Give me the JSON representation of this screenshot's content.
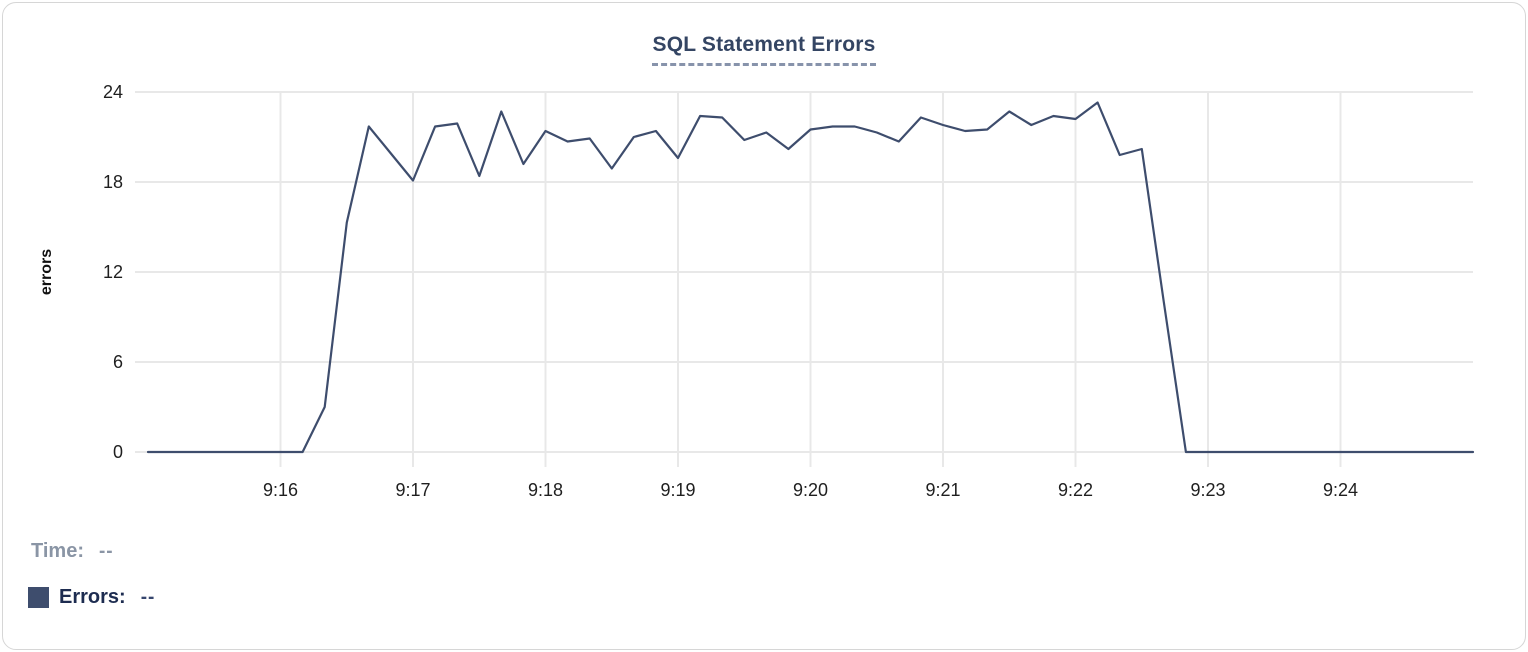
{
  "readout": {
    "time_label": "Time:",
    "time_value": "--",
    "errors_label": "Errors:",
    "errors_value": "--"
  },
  "colors": {
    "line": "#3E4D6D",
    "swatch": "#3E4D6D",
    "title": "#344563",
    "grid": "#e8e8e8",
    "tick_text": "#1f1f1f",
    "panel_border": "#d6d6d6"
  },
  "chart_data": {
    "type": "line",
    "title": "SQL Statement Errors",
    "xlabel": "",
    "ylabel": "errors",
    "ylim": [
      0,
      24
    ],
    "yticks": [
      0,
      6,
      12,
      18,
      24
    ],
    "xtick_labels": [
      "9:16",
      "9:17",
      "9:18",
      "9:19",
      "9:20",
      "9:21",
      "9:22",
      "9:23",
      "9:24"
    ],
    "x_start": "9:15:00",
    "x_end": "9:25:00",
    "grid": true,
    "legend_position": "below-left",
    "series": [
      {
        "name": "Errors",
        "color": "#3E4D6D",
        "sample_interval_seconds": 10,
        "x": [
          "9:15:00",
          "9:15:10",
          "9:15:20",
          "9:15:30",
          "9:15:40",
          "9:15:50",
          "9:16:00",
          "9:16:10",
          "9:16:20",
          "9:16:30",
          "9:16:40",
          "9:16:50",
          "9:17:00",
          "9:17:10",
          "9:17:20",
          "9:17:30",
          "9:17:40",
          "9:17:50",
          "9:18:00",
          "9:18:10",
          "9:18:20",
          "9:18:30",
          "9:18:40",
          "9:18:50",
          "9:19:00",
          "9:19:10",
          "9:19:20",
          "9:19:30",
          "9:19:40",
          "9:19:50",
          "9:20:00",
          "9:20:10",
          "9:20:20",
          "9:20:30",
          "9:20:40",
          "9:20:50",
          "9:21:00",
          "9:21:10",
          "9:21:20",
          "9:21:30",
          "9:21:40",
          "9:21:50",
          "9:22:00",
          "9:22:10",
          "9:22:20",
          "9:22:30",
          "9:22:40",
          "9:22:50",
          "9:23:00",
          "9:23:10",
          "9:23:20",
          "9:23:30",
          "9:23:40",
          "9:23:50",
          "9:24:00",
          "9:24:10",
          "9:24:20",
          "9:24:30",
          "9:24:40",
          "9:24:50",
          "9:25:00"
        ],
        "values": [
          0,
          0,
          0,
          0,
          0,
          0,
          0,
          0,
          3,
          15.3,
          21.7,
          19.9,
          18.1,
          21.7,
          21.9,
          18.4,
          22.7,
          19.2,
          21.4,
          20.7,
          20.9,
          18.9,
          21,
          21.4,
          19.6,
          22.4,
          22.3,
          20.8,
          21.3,
          20.2,
          21.5,
          21.7,
          21.7,
          21.3,
          20.7,
          22.3,
          21.8,
          21.4,
          21.5,
          22.7,
          21.8,
          22.4,
          22.2,
          23.3,
          19.8,
          20.2,
          10,
          0,
          0,
          0,
          0,
          0,
          0,
          0,
          0,
          0,
          0,
          0,
          0,
          0,
          0
        ]
      }
    ]
  }
}
